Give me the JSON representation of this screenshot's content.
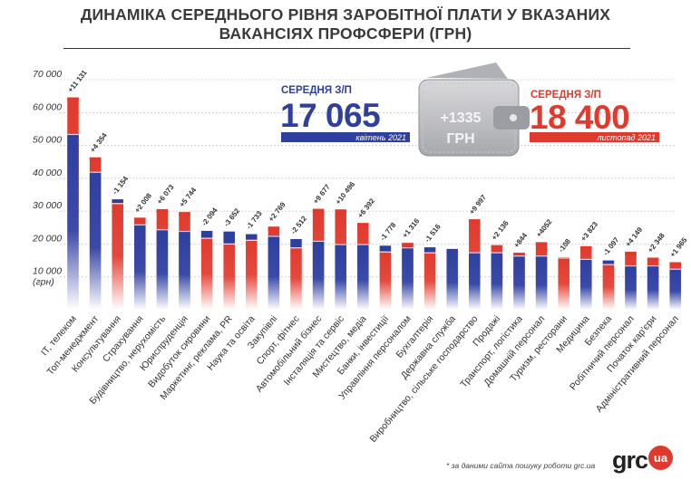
{
  "header": {
    "title_line1": "ДИНАМІКА СЕРЕДНЬОГО РІВНЯ ЗАРОБІТНОЇ ПЛАТИ У ВКАЗАНИХ",
    "title_line2": "ВАКАНСІЯХ ПРОФСФЕРИ (ГРН)"
  },
  "summary": {
    "left": {
      "label": "СЕРЕДНЯ З/П",
      "value": "17 065",
      "period": "квітень 2021"
    },
    "right": {
      "label": "СЕРЕДНЯ З/П",
      "value": "18 400",
      "period": "листопад 2021"
    },
    "wallet_value": "+1335",
    "wallet_unit": "ГРН"
  },
  "footer": {
    "note": "* за даними сайта пошуку роботи grc.ua",
    "logo_text": "grc",
    "logo_badge": "ua"
  },
  "colors": {
    "blue": "#2f3f9e",
    "red": "#e03a2e",
    "text": "#333333"
  },
  "chart_data": {
    "type": "bar",
    "ylim": [
      0,
      70000
    ],
    "yticks": [
      "10 000",
      "20 000",
      "30 000",
      "40 000",
      "50 000",
      "60 000",
      "70 000"
    ],
    "ytick_values": [
      10000,
      20000,
      30000,
      40000,
      50000,
      60000,
      70000
    ],
    "yunit": "(грн)",
    "series": [
      {
        "name": "квітень 2021",
        "color": "#2f3f9e"
      },
      {
        "name": "листопад 2021",
        "color": "#e03a2e"
      }
    ],
    "categories": [
      {
        "name": "IT, телеком",
        "april": 53500,
        "nov": 64600,
        "change": "+11 131"
      },
      {
        "name": "Топ-менеджмент",
        "april": 42000,
        "nov": 46350,
        "change": "+4 354"
      },
      {
        "name": "Консультування",
        "april": 33600,
        "nov": 32450,
        "change": "-1 154"
      },
      {
        "name": "Страхування",
        "april": 26000,
        "nov": 28000,
        "change": "+2 008"
      },
      {
        "name": "Будівництво, нерухомість",
        "april": 24500,
        "nov": 30600,
        "change": "+6 073"
      },
      {
        "name": "Юриспруденція",
        "april": 24000,
        "nov": 29700,
        "change": "+5 744"
      },
      {
        "name": "Видобуток сировини",
        "april": 24000,
        "nov": 21900,
        "change": "-2 094"
      },
      {
        "name": "Маркетинг, реклама, PR",
        "april": 23800,
        "nov": 20150,
        "change": "-3 652"
      },
      {
        "name": "Наука та освіта",
        "april": 23000,
        "nov": 21270,
        "change": "-1 733"
      },
      {
        "name": "Закупівлі",
        "april": 22500,
        "nov": 25270,
        "change": "+2 769"
      },
      {
        "name": "Спорт, фітнес",
        "april": 21500,
        "nov": 18990,
        "change": "-2 512"
      },
      {
        "name": "Автомобільний бізнес",
        "april": 21000,
        "nov": 30680,
        "change": "+9 677"
      },
      {
        "name": "Інсталяція та сервіс",
        "april": 20000,
        "nov": 30500,
        "change": "+10 496"
      },
      {
        "name": "Мистецтво, медіа",
        "april": 20000,
        "nov": 26390,
        "change": "+6 392"
      },
      {
        "name": "Банки, інвестиції",
        "april": 19500,
        "nov": 17720,
        "change": "-1 778"
      },
      {
        "name": "Управління персоналом",
        "april": 19000,
        "nov": 20320,
        "change": "+1 316"
      },
      {
        "name": "Бухгалтерія",
        "april": 19000,
        "nov": 17480,
        "change": "-1 516"
      },
      {
        "name": "Державна служба",
        "april": 18500,
        "nov": null,
        "change": ""
      },
      {
        "name": "Виробництво, сільське господарство",
        "april": 17500,
        "nov": 27500,
        "change": "+9 997"
      },
      {
        "name": "Продажі",
        "april": 17500,
        "nov": 19640,
        "change": "+2 136"
      },
      {
        "name": "Транспорт, логістика",
        "april": 16500,
        "nov": 17340,
        "change": "+844"
      },
      {
        "name": "Домашній персонал",
        "april": 16500,
        "nov": 20550,
        "change": "+4052"
      },
      {
        "name": "Туризм, ресторани",
        "april": 16000,
        "nov": 15890,
        "change": "-108"
      },
      {
        "name": "Медицина",
        "april": 15500,
        "nov": 19320,
        "change": "+3 823"
      },
      {
        "name": "Безпека",
        "april": 15000,
        "nov": 13900,
        "change": "-1 097"
      },
      {
        "name": "Робітничий персонал",
        "april": 13500,
        "nov": 17650,
        "change": "+4 149"
      },
      {
        "name": "Початок кар'єри",
        "april": 13500,
        "nov": 15850,
        "change": "+2 348"
      },
      {
        "name": "Адміністративний персонал",
        "april": 12500,
        "nov": 14470,
        "change": "+1 965"
      }
    ]
  }
}
